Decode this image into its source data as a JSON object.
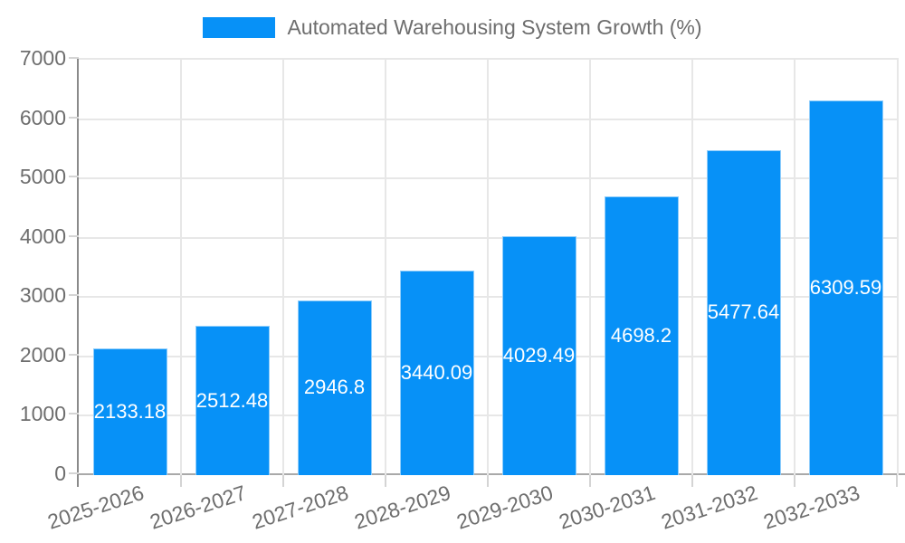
{
  "chart_data": {
    "type": "bar",
    "title": "Automated Warehousing System Growth (%)",
    "legend_entries": [
      "Automated Warehousing System Growth (%)"
    ],
    "legend_position": "top-center",
    "categories": [
      "2025-2026",
      "2026-2027",
      "2027-2028",
      "2028-2029",
      "2029-2030",
      "2030-2031",
      "2031-2032",
      "2032-2033"
    ],
    "values": [
      2133.18,
      2512.48,
      2946.8,
      3440.09,
      4029.49,
      4698.2,
      5477.64,
      6309.59
    ],
    "value_labels": [
      "2133.18",
      "2512.48",
      "2946.8",
      "3440.09",
      "4029.49",
      "4698.2",
      "5477.64",
      "6309.59"
    ],
    "xlabel": "",
    "ylabel": "",
    "ylim": [
      0,
      7000
    ],
    "yticks": [
      0,
      1000,
      2000,
      3000,
      4000,
      5000,
      6000,
      7000
    ],
    "grid": true,
    "x_label_rotation_deg": -18,
    "colors": {
      "bar": "#0791f7",
      "bar_value_label": "#ffffff",
      "axis_text": "#6e6e6e",
      "gridline": "#e7e7e7",
      "y_axis_line": "#8a8a8a",
      "x_axis_line": "#a9a9a9"
    }
  }
}
